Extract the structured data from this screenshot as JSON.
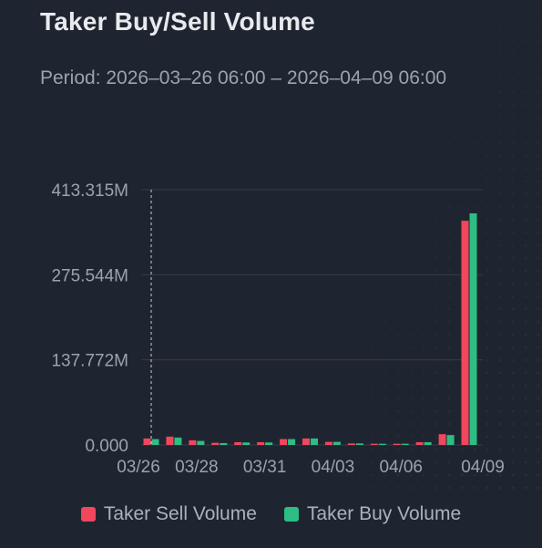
{
  "header": {
    "title": "Taker Buy/Sell Volume",
    "period": "Period: 2026–03–26 06:00 – 2026–04–09 06:00"
  },
  "colors": {
    "sell": "#f0475d",
    "buy": "#2ebd85",
    "grid": "#343b47",
    "tick_text": "#9aa3ae",
    "background": "#1f2530"
  },
  "chart_data": {
    "type": "bar",
    "title": "Taker Buy/Sell Volume",
    "subtitle": "Period: 2026–03–26 06:00 – 2026–04–09 06:00",
    "categories": [
      "03/26",
      "03/27",
      "03/28",
      "03/29",
      "03/30",
      "03/31",
      "04/01",
      "04/02",
      "04/03",
      "04/04",
      "04/05",
      "04/06",
      "04/07",
      "04/08",
      "04/09"
    ],
    "x_tick_labels": [
      "03/26",
      "03/28",
      "03/31",
      "04/03",
      "04/06",
      "04/09"
    ],
    "series": [
      {
        "name": "Taker Sell Volume",
        "color": "#f0475d",
        "values": [
          10.5,
          13.5,
          7.5,
          3.5,
          4.5,
          4.5,
          9.5,
          10.5,
          5.0,
          2.5,
          2.0,
          2.0,
          4.5,
          17.5,
          363.0
        ]
      },
      {
        "name": "Taker Buy Volume",
        "color": "#2ebd85",
        "values": [
          9.5,
          12.0,
          6.5,
          3.0,
          4.0,
          4.0,
          9.5,
          10.5,
          5.0,
          2.5,
          2.0,
          2.0,
          4.5,
          16.0,
          375.0
        ]
      }
    ],
    "y_ticks": [
      "0.000",
      "137.772M",
      "275.544M",
      "413.315M"
    ],
    "ylim": [
      0,
      413.315
    ],
    "y_unit": "M",
    "grid": true,
    "legend_position": "bottom",
    "crosshair_at": "03/26"
  }
}
